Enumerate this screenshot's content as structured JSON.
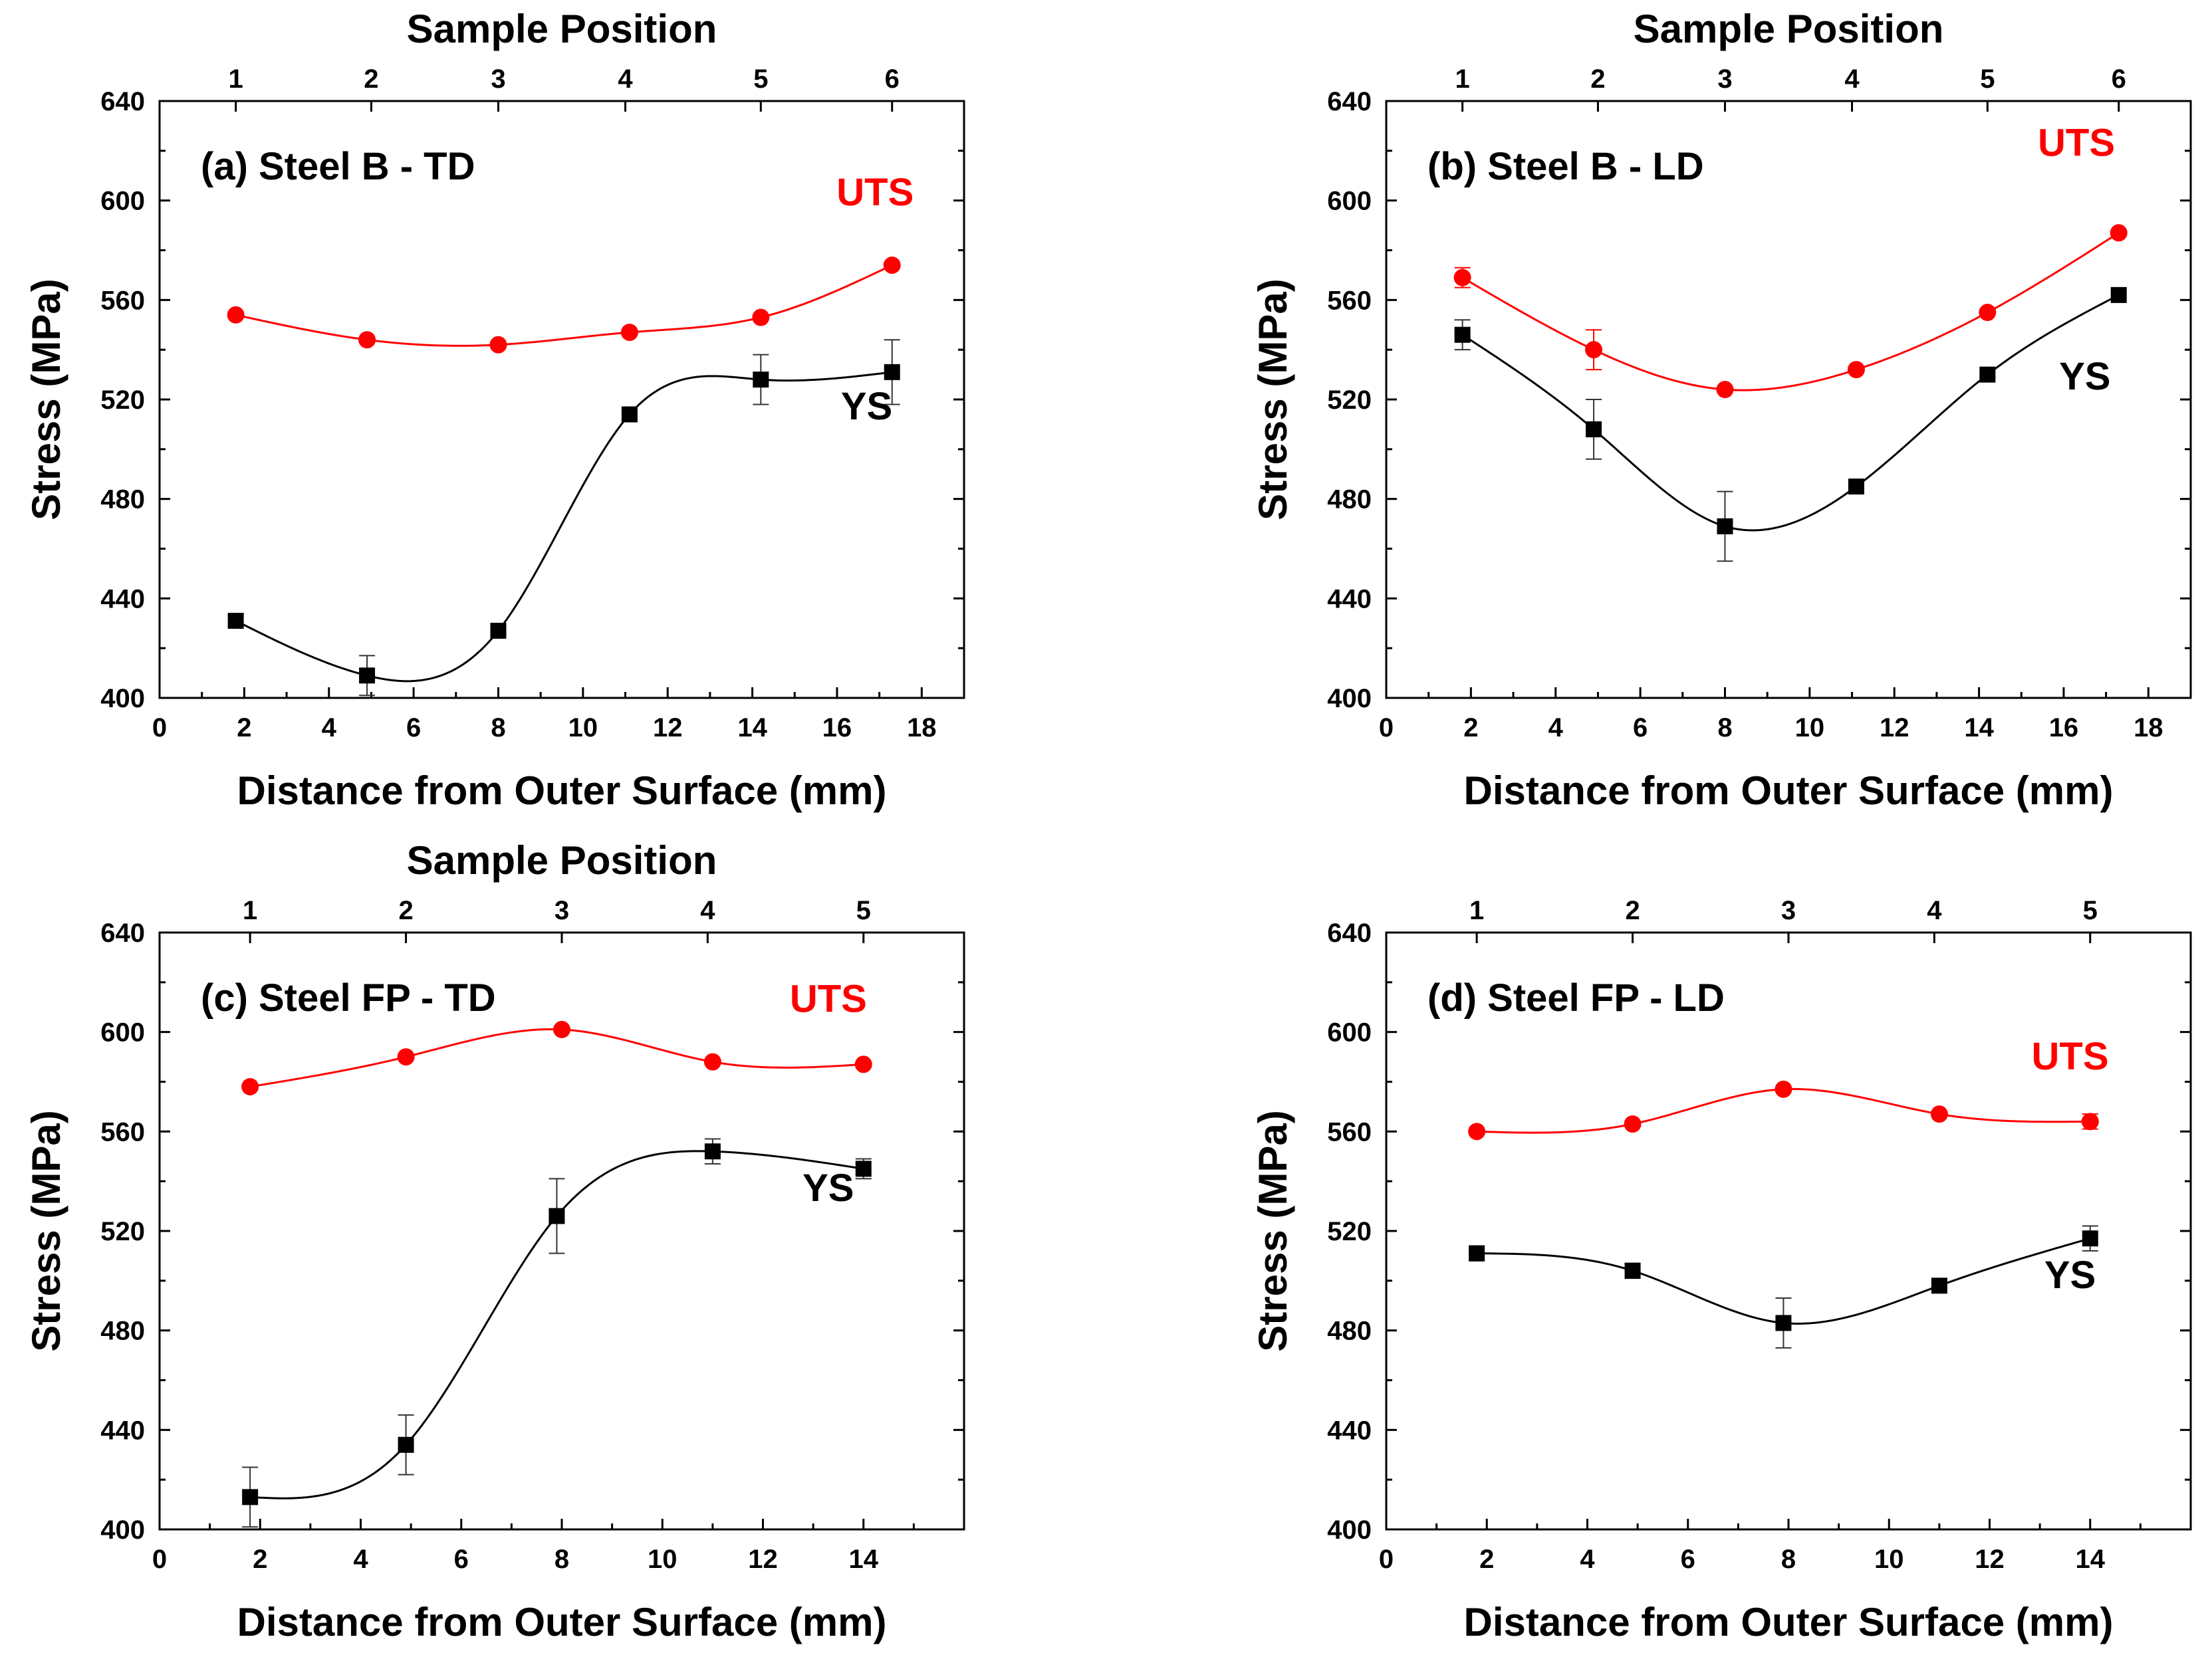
{
  "figure": {
    "colors": {
      "uts": "#ff0000",
      "ys": "#000000",
      "axis": "#000000",
      "background": "#ffffff"
    }
  },
  "chart_data": [
    {
      "panel": "a",
      "type": "line",
      "title": "(a) Steel B - TD",
      "xlabel": "Distance from Outer Surface (mm)",
      "ylabel": "Stress (MPa)",
      "top_axis_label": "Sample Position",
      "xlim": [
        0,
        19
      ],
      "ylim": [
        400,
        640
      ],
      "xticks": [
        0,
        2,
        4,
        6,
        8,
        10,
        12,
        14,
        16,
        18
      ],
      "yticks": [
        400,
        440,
        480,
        520,
        560,
        600,
        640
      ],
      "top_ticks": [
        {
          "x": 1.8,
          "label": "1"
        },
        {
          "x": 5.0,
          "label": "2"
        },
        {
          "x": 8.0,
          "label": "3"
        },
        {
          "x": 11.0,
          "label": "4"
        },
        {
          "x": 14.2,
          "label": "5"
        },
        {
          "x": 17.3,
          "label": "6"
        }
      ],
      "series": [
        {
          "name": "UTS",
          "marker": "circle",
          "color": "#ff0000",
          "x": [
            1.8,
            4.9,
            8.0,
            11.1,
            14.2,
            17.3
          ],
          "y": [
            554,
            544,
            542,
            547,
            553,
            574
          ],
          "yerr": [
            1,
            1,
            1,
            1,
            1,
            1
          ],
          "label": "UTS",
          "label_pos": [
            16.9,
            598
          ]
        },
        {
          "name": "YS",
          "marker": "square",
          "color": "#000000",
          "x": [
            1.8,
            4.9,
            8.0,
            11.1,
            14.2,
            17.3
          ],
          "y": [
            431,
            409,
            427,
            514,
            528,
            531
          ],
          "yerr": [
            2,
            8,
            2,
            2,
            10,
            13
          ],
          "label": "YS",
          "label_pos": [
            16.7,
            512
          ]
        }
      ]
    },
    {
      "panel": "b",
      "type": "line",
      "title": "(b) Steel B - LD",
      "xlabel": "Distance from Outer Surface (mm)",
      "ylabel": "Stress (MPa)",
      "top_axis_label": "Sample Position",
      "xlim": [
        0,
        19
      ],
      "ylim": [
        400,
        640
      ],
      "xticks": [
        0,
        2,
        4,
        6,
        8,
        10,
        12,
        14,
        16,
        18
      ],
      "yticks": [
        400,
        440,
        480,
        520,
        560,
        600,
        640
      ],
      "top_ticks": [
        {
          "x": 1.8,
          "label": "1"
        },
        {
          "x": 5.0,
          "label": "2"
        },
        {
          "x": 8.0,
          "label": "3"
        },
        {
          "x": 11.0,
          "label": "4"
        },
        {
          "x": 14.2,
          "label": "5"
        },
        {
          "x": 17.3,
          "label": "6"
        }
      ],
      "series": [
        {
          "name": "UTS",
          "marker": "circle",
          "color": "#ff0000",
          "x": [
            1.8,
            4.9,
            8.0,
            11.1,
            14.2,
            17.3
          ],
          "y": [
            569,
            540,
            524,
            532,
            555,
            587
          ],
          "yerr": [
            4,
            8,
            1,
            1,
            1,
            1
          ],
          "label": "UTS",
          "label_pos": [
            16.3,
            618
          ]
        },
        {
          "name": "YS",
          "marker": "square",
          "color": "#000000",
          "x": [
            1.8,
            4.9,
            8.0,
            11.1,
            14.2,
            17.3
          ],
          "y": [
            546,
            508,
            469,
            485,
            530,
            562
          ],
          "yerr": [
            6,
            12,
            14,
            1,
            1,
            1
          ],
          "label": "YS",
          "label_pos": [
            16.5,
            524
          ]
        }
      ]
    },
    {
      "panel": "c",
      "type": "line",
      "title": "(c) Steel FP - TD",
      "xlabel": "Distance from Outer Surface (mm)",
      "ylabel": "Stress (MPa)",
      "top_axis_label": "Sample Position",
      "xlim": [
        0,
        16
      ],
      "ylim": [
        400,
        640
      ],
      "xticks": [
        0,
        2,
        4,
        6,
        8,
        10,
        12,
        14
      ],
      "yticks": [
        400,
        440,
        480,
        520,
        560,
        600,
        640
      ],
      "top_ticks": [
        {
          "x": 1.8,
          "label": "1"
        },
        {
          "x": 4.9,
          "label": "2"
        },
        {
          "x": 8.0,
          "label": "3"
        },
        {
          "x": 10.9,
          "label": "4"
        },
        {
          "x": 14.0,
          "label": "5"
        }
      ],
      "series": [
        {
          "name": "UTS",
          "marker": "circle",
          "color": "#ff0000",
          "x": [
            1.8,
            4.9,
            8.0,
            11.0,
            14.0
          ],
          "y": [
            578,
            590,
            601,
            588,
            587
          ],
          "yerr": [
            1,
            1,
            1,
            1,
            1
          ],
          "label": "UTS",
          "label_pos": [
            13.3,
            608
          ]
        },
        {
          "name": "YS",
          "marker": "square",
          "color": "#000000",
          "x": [
            1.8,
            4.9,
            7.9,
            11.0,
            14.0
          ],
          "y": [
            413,
            434,
            526,
            552,
            545
          ],
          "yerr": [
            12,
            12,
            15,
            5,
            4
          ],
          "label": "YS",
          "label_pos": [
            13.3,
            532
          ]
        }
      ]
    },
    {
      "panel": "d",
      "type": "line",
      "title": "(d) Steel FP - LD",
      "xlabel": "Distance from Outer Surface (mm)",
      "ylabel": "Stress (MPa)",
      "top_axis_label": "",
      "xlim": [
        0,
        16
      ],
      "ylim": [
        400,
        640
      ],
      "xticks": [
        0,
        2,
        4,
        6,
        8,
        10,
        12,
        14
      ],
      "yticks": [
        400,
        440,
        480,
        520,
        560,
        600,
        640
      ],
      "top_ticks": [
        {
          "x": 1.8,
          "label": "1"
        },
        {
          "x": 4.9,
          "label": "2"
        },
        {
          "x": 8.0,
          "label": "3"
        },
        {
          "x": 10.9,
          "label": "4"
        },
        {
          "x": 14.0,
          "label": "5"
        }
      ],
      "series": [
        {
          "name": "UTS",
          "marker": "circle",
          "color": "#ff0000",
          "x": [
            1.8,
            4.9,
            7.9,
            11.0,
            14.0
          ],
          "y": [
            560,
            563,
            577,
            567,
            564
          ],
          "yerr": [
            1,
            1,
            1,
            1,
            3
          ],
          "label": "UTS",
          "label_pos": [
            13.6,
            585
          ]
        },
        {
          "name": "YS",
          "marker": "square",
          "color": "#000000",
          "x": [
            1.8,
            4.9,
            7.9,
            11.0,
            14.0
          ],
          "y": [
            511,
            504,
            483,
            498,
            517
          ],
          "yerr": [
            3,
            3,
            10,
            1,
            5
          ],
          "label": "YS",
          "label_pos": [
            13.6,
            497
          ]
        }
      ]
    }
  ]
}
